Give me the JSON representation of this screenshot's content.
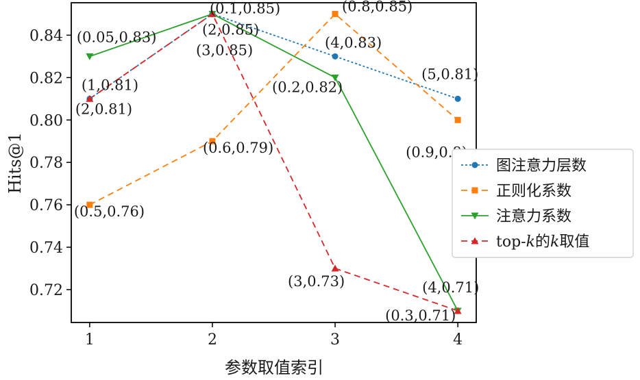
{
  "chart_data": {
    "type": "line",
    "title": "",
    "xlabel": "参数取值索引",
    "ylabel": "Hits@1",
    "categories": [
      "1",
      "2",
      "3",
      "4"
    ],
    "x": [
      1,
      2,
      3,
      4
    ],
    "xlim": [
      0.85,
      4.15
    ],
    "ylim": [
      0.7045,
      0.8553
    ],
    "yticks": [
      0.72,
      0.74,
      0.76,
      0.78,
      0.8,
      0.82,
      0.84
    ],
    "ytick_labels": [
      "0.72",
      "0.74",
      "0.76",
      "0.78",
      "0.80",
      "0.82",
      "0.84"
    ],
    "grid": false,
    "legend_placement": "right",
    "series": [
      {
        "name": "图注意力层数",
        "values": [
          0.81,
          0.85,
          0.83,
          0.81
        ],
        "color": "#1f77b4",
        "marker": "circle",
        "dash": "dotted",
        "labels": [
          "(1,0.81)",
          "(2,0.85)",
          "(4,0.83)",
          "(5,0.81)"
        ]
      },
      {
        "name": "正则化系数",
        "values": [
          0.76,
          0.79,
          0.85,
          0.8
        ],
        "color": "#ff7f0e",
        "marker": "square",
        "dash": "dashed",
        "labels": [
          "(0.5,0.76)",
          "(0.6,0.79)",
          "(0.8,0.85)",
          "(0.9,0.8)"
        ]
      },
      {
        "name": "注意力系数",
        "values": [
          0.83,
          0.85,
          0.82,
          0.71
        ],
        "color": "#2ca02c",
        "marker": "triangle-down",
        "dash": "solid",
        "labels": [
          "(0.05,0.83)",
          "(0.1,0.85)",
          "(0.2,0.82)",
          "(0.3,0.71)"
        ]
      },
      {
        "name": "top-k的k取值",
        "name_parts": [
          "top-",
          "k",
          "的",
          "k",
          "取值"
        ],
        "values": [
          0.81,
          0.85,
          0.73,
          0.71
        ],
        "color": "#d62728",
        "marker": "triangle-up",
        "dash": "dashed",
        "labels": [
          "(2,0.81)",
          "(3,0.85)",
          "(3,0.73)",
          "(4,0.71)"
        ]
      }
    ]
  }
}
